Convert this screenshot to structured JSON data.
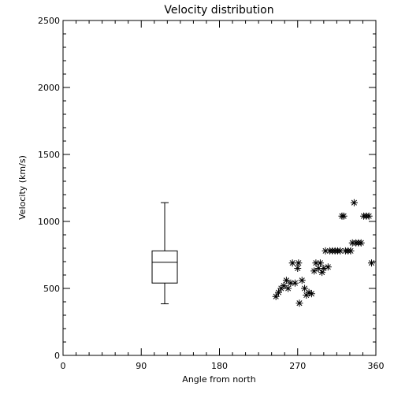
{
  "chart_data": {
    "type": "scatter",
    "title": "Velocity distribution",
    "xlabel": "Angle from north",
    "ylabel": "Velocity (km/s)",
    "xlim": [
      0,
      360
    ],
    "ylim": [
      0,
      2500
    ],
    "x_ticks": [
      "0",
      "90",
      "180",
      "270",
      "360"
    ],
    "y_ticks": [
      "0",
      "500",
      "1000",
      "1500",
      "2000",
      "2500"
    ],
    "grid": false,
    "boxplot": {
      "x": 117,
      "min": 385,
      "q1": 540,
      "median": 695,
      "q3": 780,
      "max": 1140
    },
    "points": [
      {
        "x": 245,
        "y": 440
      },
      {
        "x": 248,
        "y": 470
      },
      {
        "x": 251,
        "y": 500
      },
      {
        "x": 254,
        "y": 520
      },
      {
        "x": 257,
        "y": 560
      },
      {
        "x": 259,
        "y": 500
      },
      {
        "x": 262,
        "y": 540
      },
      {
        "x": 264,
        "y": 690
      },
      {
        "x": 267,
        "y": 540
      },
      {
        "x": 270,
        "y": 650
      },
      {
        "x": 271,
        "y": 690
      },
      {
        "x": 272,
        "y": 390
      },
      {
        "x": 275,
        "y": 560
      },
      {
        "x": 278,
        "y": 500
      },
      {
        "x": 280,
        "y": 450
      },
      {
        "x": 283,
        "y": 470
      },
      {
        "x": 286,
        "y": 460
      },
      {
        "x": 289,
        "y": 630
      },
      {
        "x": 291,
        "y": 690
      },
      {
        "x": 294,
        "y": 650
      },
      {
        "x": 296,
        "y": 690
      },
      {
        "x": 298,
        "y": 620
      },
      {
        "x": 300,
        "y": 650
      },
      {
        "x": 302,
        "y": 780
      },
      {
        "x": 305,
        "y": 660
      },
      {
        "x": 307,
        "y": 780
      },
      {
        "x": 310,
        "y": 780
      },
      {
        "x": 313,
        "y": 780
      },
      {
        "x": 316,
        "y": 780
      },
      {
        "x": 319,
        "y": 780
      },
      {
        "x": 321,
        "y": 1040
      },
      {
        "x": 323,
        "y": 1040
      },
      {
        "x": 325,
        "y": 780
      },
      {
        "x": 328,
        "y": 780
      },
      {
        "x": 331,
        "y": 780
      },
      {
        "x": 333,
        "y": 840
      },
      {
        "x": 335,
        "y": 1140
      },
      {
        "x": 337,
        "y": 840
      },
      {
        "x": 340,
        "y": 840
      },
      {
        "x": 343,
        "y": 840
      },
      {
        "x": 346,
        "y": 1040
      },
      {
        "x": 349,
        "y": 1040
      },
      {
        "x": 352,
        "y": 1040
      },
      {
        "x": 355,
        "y": 690
      }
    ]
  }
}
